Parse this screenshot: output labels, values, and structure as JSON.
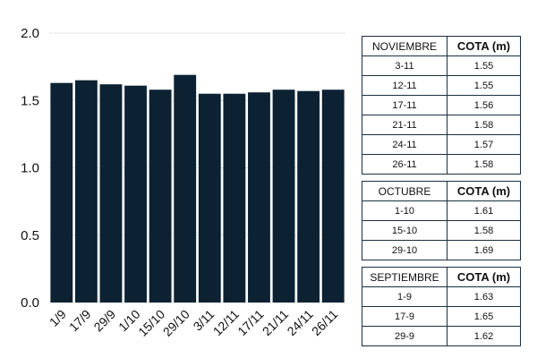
{
  "chart_data": {
    "type": "bar",
    "categories": [
      "1/9",
      "17/9",
      "29/9",
      "1/10",
      "15/10",
      "29/10",
      "3/11",
      "12/11",
      "17/11",
      "21/11",
      "24/11",
      "26/11"
    ],
    "values": [
      1.63,
      1.65,
      1.62,
      1.61,
      1.58,
      1.69,
      1.55,
      1.55,
      1.56,
      1.58,
      1.57,
      1.58
    ],
    "yticks": [
      "0.0",
      "0.5",
      "1.0",
      "1.5",
      "2.0"
    ],
    "ylim": [
      0,
      2.0
    ],
    "grid": true,
    "colors": {
      "bar": "#0c2233"
    }
  },
  "tables": [
    {
      "month": "NOVIEMBRE",
      "value_header": "COTA (m)",
      "rows": [
        {
          "date": "3-11",
          "value": "1.55"
        },
        {
          "date": "12-11",
          "value": "1.55"
        },
        {
          "date": "17-11",
          "value": "1.56"
        },
        {
          "date": "21-11",
          "value": "1.58"
        },
        {
          "date": "24-11",
          "value": "1.57"
        },
        {
          "date": "26-11",
          "value": "1.58"
        }
      ]
    },
    {
      "month": "OCTUBRE",
      "value_header": "COTA (m)",
      "rows": [
        {
          "date": "1-10",
          "value": "1.61"
        },
        {
          "date": "15-10",
          "value": "1.58"
        },
        {
          "date": "29-10",
          "value": "1.69"
        }
      ]
    },
    {
      "month": "SEPTIEMBRE",
      "value_header": "COTA (m)",
      "rows": [
        {
          "date": "1-9",
          "value": "1.63"
        },
        {
          "date": "17-9",
          "value": "1.65"
        },
        {
          "date": "29-9",
          "value": "1.62"
        }
      ]
    }
  ]
}
